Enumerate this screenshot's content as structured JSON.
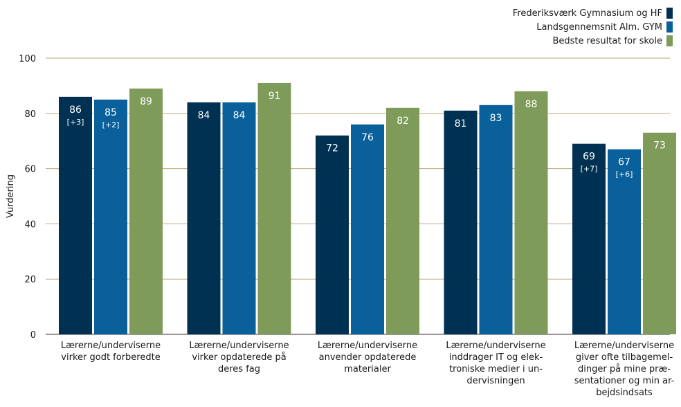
{
  "colors": {
    "series1": "#003152",
    "series2": "#09609a",
    "series3": "#7f9b59",
    "grid": "#b8a777",
    "axis": "#333333",
    "label_light": "#ffffff"
  },
  "legend": {
    "items": [
      {
        "label": "Frederiksværk Gymnasium og HF",
        "color": "#003152"
      },
      {
        "label": "Landsgennemsnit Alm. GYM",
        "color": "#09609a"
      },
      {
        "label": "Bedste resultat for skole",
        "color": "#7f9b59"
      }
    ]
  },
  "chart_data": {
    "type": "bar",
    "title": "",
    "xlabel": "",
    "ylabel": "Vurdering",
    "ylim": [
      0,
      100
    ],
    "yticks": [
      0,
      20,
      40,
      60,
      80,
      100
    ],
    "grid": true,
    "legend_position": "top-right",
    "categories": [
      [
        "Lærerne/underviserne",
        "virker godt forberedte"
      ],
      [
        "Lærerne/underviserne",
        "virker opdaterede på",
        "deres fag"
      ],
      [
        "Lærerne/underviserne",
        "anvender opdaterede",
        "materialer"
      ],
      [
        "Lærerne/underviserne",
        "inddrager IT og elek-",
        "troniske medier i un-",
        "dervisningen"
      ],
      [
        "Lærerne/underviserne",
        "giver ofte tilbagemel-",
        "dinger på mine præ-",
        "sentationer og min ar-",
        "bejdsindsats"
      ]
    ],
    "series": [
      {
        "name": "Frederiksværk Gymnasium og HF",
        "color": "#003152",
        "values": [
          86,
          84,
          72,
          81,
          69
        ],
        "labels": [
          "86",
          "84",
          "72",
          "81",
          "69"
        ],
        "sublabels": [
          "[+3]",
          "",
          "",
          "",
          "[+7]"
        ]
      },
      {
        "name": "Landsgennemsnit Alm. GYM",
        "color": "#09609a",
        "values": [
          85,
          84,
          76,
          83,
          67
        ],
        "labels": [
          "85",
          "84",
          "76",
          "83",
          "67"
        ],
        "sublabels": [
          "[+2]",
          "",
          "",
          "",
          "[+6]"
        ]
      },
      {
        "name": "Bedste resultat for skole",
        "color": "#7f9b59",
        "values": [
          89,
          91,
          82,
          88,
          73
        ],
        "labels": [
          "89",
          "91",
          "82",
          "88",
          "73"
        ],
        "sublabels": [
          "",
          "",
          "",
          "",
          ""
        ]
      }
    ]
  }
}
